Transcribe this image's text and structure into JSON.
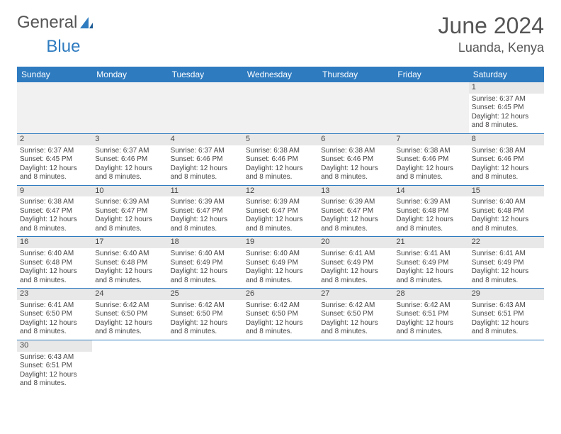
{
  "header": {
    "logo_text_1": "General",
    "logo_text_2": "Blue",
    "month_year": "June 2024",
    "location": "Luanda, Kenya"
  },
  "colors": {
    "header_bg": "#2e7bc0",
    "header_text": "#ffffff",
    "daynum_bg": "#e8e8e8",
    "cell_border": "#2e7bc0",
    "logo_blue": "#2e7bc0",
    "text": "#444444"
  },
  "day_headers": [
    "Sunday",
    "Monday",
    "Tuesday",
    "Wednesday",
    "Thursday",
    "Friday",
    "Saturday"
  ],
  "weeks": [
    [
      null,
      null,
      null,
      null,
      null,
      null,
      {
        "n": "1",
        "sunrise": "Sunrise: 6:37 AM",
        "sunset": "Sunset: 6:45 PM",
        "daylight": "Daylight: 12 hours and 8 minutes."
      }
    ],
    [
      {
        "n": "2",
        "sunrise": "Sunrise: 6:37 AM",
        "sunset": "Sunset: 6:45 PM",
        "daylight": "Daylight: 12 hours and 8 minutes."
      },
      {
        "n": "3",
        "sunrise": "Sunrise: 6:37 AM",
        "sunset": "Sunset: 6:46 PM",
        "daylight": "Daylight: 12 hours and 8 minutes."
      },
      {
        "n": "4",
        "sunrise": "Sunrise: 6:37 AM",
        "sunset": "Sunset: 6:46 PM",
        "daylight": "Daylight: 12 hours and 8 minutes."
      },
      {
        "n": "5",
        "sunrise": "Sunrise: 6:38 AM",
        "sunset": "Sunset: 6:46 PM",
        "daylight": "Daylight: 12 hours and 8 minutes."
      },
      {
        "n": "6",
        "sunrise": "Sunrise: 6:38 AM",
        "sunset": "Sunset: 6:46 PM",
        "daylight": "Daylight: 12 hours and 8 minutes."
      },
      {
        "n": "7",
        "sunrise": "Sunrise: 6:38 AM",
        "sunset": "Sunset: 6:46 PM",
        "daylight": "Daylight: 12 hours and 8 minutes."
      },
      {
        "n": "8",
        "sunrise": "Sunrise: 6:38 AM",
        "sunset": "Sunset: 6:46 PM",
        "daylight": "Daylight: 12 hours and 8 minutes."
      }
    ],
    [
      {
        "n": "9",
        "sunrise": "Sunrise: 6:38 AM",
        "sunset": "Sunset: 6:47 PM",
        "daylight": "Daylight: 12 hours and 8 minutes."
      },
      {
        "n": "10",
        "sunrise": "Sunrise: 6:39 AM",
        "sunset": "Sunset: 6:47 PM",
        "daylight": "Daylight: 12 hours and 8 minutes."
      },
      {
        "n": "11",
        "sunrise": "Sunrise: 6:39 AM",
        "sunset": "Sunset: 6:47 PM",
        "daylight": "Daylight: 12 hours and 8 minutes."
      },
      {
        "n": "12",
        "sunrise": "Sunrise: 6:39 AM",
        "sunset": "Sunset: 6:47 PM",
        "daylight": "Daylight: 12 hours and 8 minutes."
      },
      {
        "n": "13",
        "sunrise": "Sunrise: 6:39 AM",
        "sunset": "Sunset: 6:47 PM",
        "daylight": "Daylight: 12 hours and 8 minutes."
      },
      {
        "n": "14",
        "sunrise": "Sunrise: 6:39 AM",
        "sunset": "Sunset: 6:48 PM",
        "daylight": "Daylight: 12 hours and 8 minutes."
      },
      {
        "n": "15",
        "sunrise": "Sunrise: 6:40 AM",
        "sunset": "Sunset: 6:48 PM",
        "daylight": "Daylight: 12 hours and 8 minutes."
      }
    ],
    [
      {
        "n": "16",
        "sunrise": "Sunrise: 6:40 AM",
        "sunset": "Sunset: 6:48 PM",
        "daylight": "Daylight: 12 hours and 8 minutes."
      },
      {
        "n": "17",
        "sunrise": "Sunrise: 6:40 AM",
        "sunset": "Sunset: 6:48 PM",
        "daylight": "Daylight: 12 hours and 8 minutes."
      },
      {
        "n": "18",
        "sunrise": "Sunrise: 6:40 AM",
        "sunset": "Sunset: 6:49 PM",
        "daylight": "Daylight: 12 hours and 8 minutes."
      },
      {
        "n": "19",
        "sunrise": "Sunrise: 6:40 AM",
        "sunset": "Sunset: 6:49 PM",
        "daylight": "Daylight: 12 hours and 8 minutes."
      },
      {
        "n": "20",
        "sunrise": "Sunrise: 6:41 AM",
        "sunset": "Sunset: 6:49 PM",
        "daylight": "Daylight: 12 hours and 8 minutes."
      },
      {
        "n": "21",
        "sunrise": "Sunrise: 6:41 AM",
        "sunset": "Sunset: 6:49 PM",
        "daylight": "Daylight: 12 hours and 8 minutes."
      },
      {
        "n": "22",
        "sunrise": "Sunrise: 6:41 AM",
        "sunset": "Sunset: 6:49 PM",
        "daylight": "Daylight: 12 hours and 8 minutes."
      }
    ],
    [
      {
        "n": "23",
        "sunrise": "Sunrise: 6:41 AM",
        "sunset": "Sunset: 6:50 PM",
        "daylight": "Daylight: 12 hours and 8 minutes."
      },
      {
        "n": "24",
        "sunrise": "Sunrise: 6:42 AM",
        "sunset": "Sunset: 6:50 PM",
        "daylight": "Daylight: 12 hours and 8 minutes."
      },
      {
        "n": "25",
        "sunrise": "Sunrise: 6:42 AM",
        "sunset": "Sunset: 6:50 PM",
        "daylight": "Daylight: 12 hours and 8 minutes."
      },
      {
        "n": "26",
        "sunrise": "Sunrise: 6:42 AM",
        "sunset": "Sunset: 6:50 PM",
        "daylight": "Daylight: 12 hours and 8 minutes."
      },
      {
        "n": "27",
        "sunrise": "Sunrise: 6:42 AM",
        "sunset": "Sunset: 6:50 PM",
        "daylight": "Daylight: 12 hours and 8 minutes."
      },
      {
        "n": "28",
        "sunrise": "Sunrise: 6:42 AM",
        "sunset": "Sunset: 6:51 PM",
        "daylight": "Daylight: 12 hours and 8 minutes."
      },
      {
        "n": "29",
        "sunrise": "Sunrise: 6:43 AM",
        "sunset": "Sunset: 6:51 PM",
        "daylight": "Daylight: 12 hours and 8 minutes."
      }
    ],
    [
      {
        "n": "30",
        "sunrise": "Sunrise: 6:43 AM",
        "sunset": "Sunset: 6:51 PM",
        "daylight": "Daylight: 12 hours and 8 minutes."
      },
      null,
      null,
      null,
      null,
      null,
      null
    ]
  ]
}
